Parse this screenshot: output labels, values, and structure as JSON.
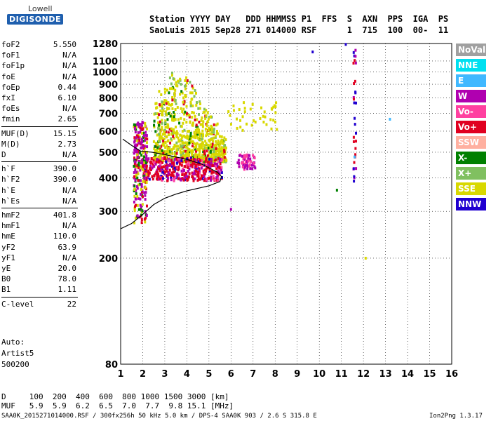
{
  "logo": {
    "top": "Lowell",
    "bottom": "DIGISONDE"
  },
  "header": {
    "line1": "Station YYYY DAY   DDD HHMMSS P1  FFS  S  AXN  PPS  IGA  PS",
    "line2": "SaoLuis 2015 Sep28 271 014000 RSF      1  715  100  00-  11"
  },
  "params": [
    {
      "k": "foF2",
      "v": "5.550"
    },
    {
      "k": "foF1",
      "v": "N/A"
    },
    {
      "k": "foF1p",
      "v": "N/A"
    },
    {
      "k": "foE",
      "v": "N/A"
    },
    {
      "k": "foEp",
      "v": "0.44"
    },
    {
      "k": "fxI",
      "v": "6.10"
    },
    {
      "k": "foEs",
      "v": "N/A"
    },
    {
      "k": "fmin",
      "v": "2.65"
    },
    {
      "k": "MUF(D)",
      "v": "15.15"
    },
    {
      "k": "M(D)",
      "v": "2.73"
    },
    {
      "k": "D",
      "v": "N/A"
    },
    {
      "k": "h`F",
      "v": "390.0"
    },
    {
      "k": "h`F2",
      "v": "390.0"
    },
    {
      "k": "h`E",
      "v": "N/A"
    },
    {
      "k": "h`Es",
      "v": "N/A"
    },
    {
      "k": "hmF2",
      "v": "401.8"
    },
    {
      "k": "hmF1",
      "v": "N/A"
    },
    {
      "k": "hmE",
      "v": "110.0"
    },
    {
      "k": "yF2",
      "v": "63.9"
    },
    {
      "k": "yF1",
      "v": "N/A"
    },
    {
      "k": "yE",
      "v": "20.0"
    },
    {
      "k": "B0",
      "v": "78.0"
    },
    {
      "k": "B1",
      "v": "1.11"
    },
    {
      "k": "C-level",
      "v": "22"
    }
  ],
  "auto": {
    "line1": "Auto:",
    "line2": "Artist5",
    "line3": "500200"
  },
  "legend": [
    {
      "label": "NoVal",
      "color": "#a0a0a0"
    },
    {
      "label": "NNE",
      "color": "#00e0f0"
    },
    {
      "label": "E",
      "color": "#40b8ff"
    },
    {
      "label": "W",
      "color": "#b000b0"
    },
    {
      "label": "Vo-",
      "color": "#ff40a0"
    },
    {
      "label": "Vo+",
      "color": "#e00020"
    },
    {
      "label": "SSW",
      "color": "#ffb0a0"
    },
    {
      "label": "X-",
      "color": "#008000"
    },
    {
      "label": "X+",
      "color": "#80c060"
    },
    {
      "label": "SSE",
      "color": "#d8d800"
    },
    {
      "label": "NNW",
      "color": "#2000d0"
    }
  ],
  "bottom": {
    "d_row": "D     100  200  400  600  800 1000 1500 3000 [km]",
    "muf_row": "MUF   5.9  5.9  6.2  6.5  7.0  7.7  9.8 15.1 [MHz]"
  },
  "footer": {
    "left": "SAA0K_2015271014000.RSF / 300fx256h 50 kHz 5.0 km / DPS-4 SAA0K 903 / 2.6 S 315.8 E",
    "right": "Ion2Png 1.3.17"
  },
  "chart_data": {
    "type": "scatter",
    "title": "",
    "xlabel": "",
    "ylabel": "",
    "xlim": [
      1,
      16
    ],
    "ylim": [
      80,
      1280
    ],
    "x_ticks": [
      1,
      2,
      3,
      4,
      5,
      6,
      7,
      8,
      9,
      10,
      11,
      12,
      13,
      14,
      15,
      16
    ],
    "y_ticks": [
      80,
      200,
      300,
      400,
      500,
      600,
      700,
      800,
      900,
      1000,
      1100,
      1280
    ],
    "y_scale": "log",
    "grid": true,
    "trace_profile": {
      "x": [
        1.0,
        1.5,
        2.0,
        2.5,
        3.0,
        3.5,
        4.0,
        4.5,
        5.0,
        5.5,
        5.55
      ],
      "y": [
        258,
        270,
        292,
        318,
        336,
        348,
        358,
        366,
        374,
        388,
        402
      ]
    },
    "trace_upper": {
      "x": [
        1.1,
        1.5,
        1.9,
        2.4,
        3.0,
        4.0,
        4.7,
        5.4,
        5.6
      ],
      "y": [
        560,
        530,
        505,
        500,
        490,
        470,
        450,
        420,
        402
      ]
    },
    "clusters": [
      {
        "name": "SSE",
        "x": [
          2.5,
          5.8
        ],
        "y": [
          420,
          1080
        ]
      },
      {
        "name": "Vo+",
        "x": [
          2.2,
          5.6
        ],
        "y": [
          385,
          470
        ]
      },
      {
        "name": "W",
        "x": [
          1.6,
          2.2
        ],
        "y": [
          280,
          480
        ]
      },
      {
        "name": "NNW",
        "x": [
          11.5,
          11.7
        ],
        "y": [
          380,
          1200
        ]
      }
    ]
  }
}
